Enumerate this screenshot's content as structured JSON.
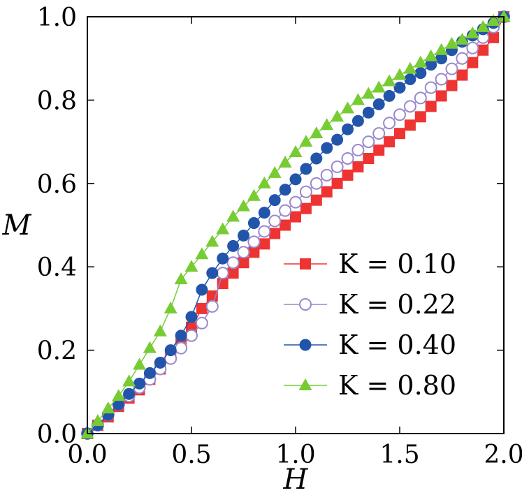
{
  "chart_data": {
    "type": "line",
    "xlabel": "H",
    "ylabel": "M",
    "xlim": [
      0.0,
      2.0
    ],
    "ylim": [
      0.0,
      1.0
    ],
    "xticks": [
      "0.0",
      "0.5",
      "1.0",
      "1.5",
      "2.0"
    ],
    "yticks": [
      "0.0",
      "0.2",
      "0.4",
      "0.6",
      "0.8",
      "1.0"
    ],
    "grid": false,
    "legend_position": "lower-right",
    "x": [
      0.0,
      0.05,
      0.1,
      0.15,
      0.2,
      0.25,
      0.3,
      0.35,
      0.4,
      0.45,
      0.5,
      0.55,
      0.6,
      0.65,
      0.7,
      0.75,
      0.8,
      0.85,
      0.9,
      0.95,
      1.0,
      1.05,
      1.1,
      1.15,
      1.2,
      1.25,
      1.3,
      1.35,
      1.4,
      1.45,
      1.5,
      1.55,
      1.6,
      1.65,
      1.7,
      1.75,
      1.8,
      1.85,
      1.9,
      1.95,
      2.0
    ],
    "series": [
      {
        "name": "K = 0.10",
        "color": "#ee3333",
        "marker": "square-filled",
        "values": [
          0.0,
          0.02,
          0.04,
          0.065,
          0.085,
          0.105,
          0.13,
          0.155,
          0.185,
          0.215,
          0.255,
          0.3,
          0.33,
          0.36,
          0.385,
          0.41,
          0.435,
          0.455,
          0.48,
          0.5,
          0.52,
          0.54,
          0.56,
          0.58,
          0.6,
          0.62,
          0.64,
          0.66,
          0.68,
          0.7,
          0.72,
          0.74,
          0.76,
          0.785,
          0.81,
          0.835,
          0.86,
          0.89,
          0.92,
          0.95,
          1.0
        ]
      },
      {
        "name": "K = 0.22",
        "color": "#9988cc",
        "marker": "circle-open",
        "values": [
          0.0,
          0.02,
          0.045,
          0.07,
          0.09,
          0.11,
          0.13,
          0.155,
          0.18,
          0.205,
          0.235,
          0.265,
          0.305,
          0.385,
          0.41,
          0.435,
          0.46,
          0.485,
          0.51,
          0.535,
          0.555,
          0.58,
          0.6,
          0.62,
          0.64,
          0.66,
          0.68,
          0.7,
          0.72,
          0.745,
          0.765,
          0.785,
          0.805,
          0.83,
          0.85,
          0.875,
          0.9,
          0.925,
          0.95,
          0.975,
          1.0
        ]
      },
      {
        "name": "K = 0.40",
        "color": "#2255aa",
        "marker": "circle-filled",
        "values": [
          0.0,
          0.02,
          0.045,
          0.07,
          0.095,
          0.12,
          0.145,
          0.17,
          0.2,
          0.235,
          0.28,
          0.345,
          0.385,
          0.42,
          0.45,
          0.475,
          0.505,
          0.53,
          0.56,
          0.585,
          0.61,
          0.635,
          0.66,
          0.685,
          0.705,
          0.73,
          0.75,
          0.77,
          0.79,
          0.81,
          0.83,
          0.85,
          0.865,
          0.885,
          0.9,
          0.92,
          0.94,
          0.955,
          0.97,
          0.985,
          1.0
        ]
      },
      {
        "name": "K = 0.80",
        "color": "#77cc33",
        "marker": "triangle-filled",
        "values": [
          0.0,
          0.03,
          0.06,
          0.09,
          0.125,
          0.165,
          0.205,
          0.245,
          0.3,
          0.37,
          0.4,
          0.43,
          0.46,
          0.49,
          0.52,
          0.545,
          0.57,
          0.6,
          0.625,
          0.65,
          0.675,
          0.7,
          0.72,
          0.74,
          0.76,
          0.78,
          0.8,
          0.815,
          0.83,
          0.845,
          0.86,
          0.875,
          0.89,
          0.905,
          0.92,
          0.935,
          0.945,
          0.96,
          0.975,
          0.99,
          1.0
        ]
      }
    ]
  }
}
